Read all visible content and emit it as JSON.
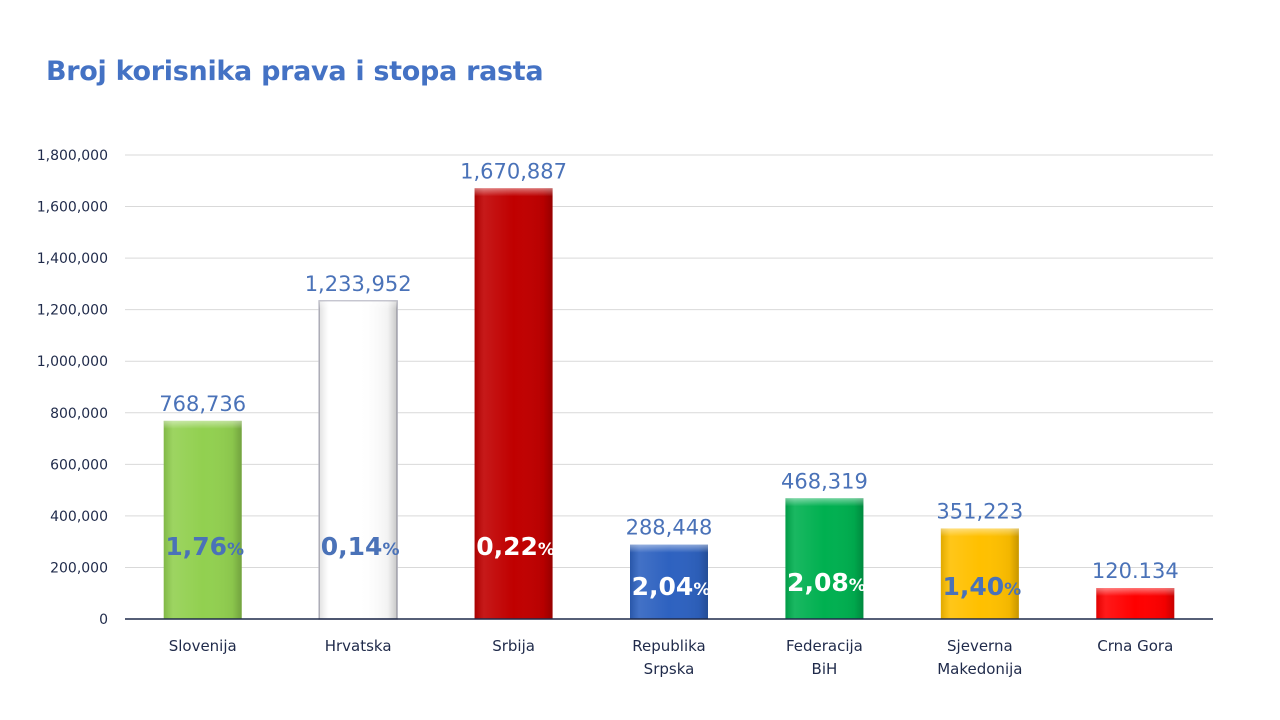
{
  "chart_data": {
    "type": "bar",
    "title": "Broj korisnika prava i stopa rasta",
    "xlabel": "",
    "ylabel": "",
    "ylim": [
      0,
      1800000
    ],
    "yticks": [
      0,
      200000,
      400000,
      600000,
      800000,
      1000000,
      1200000,
      1400000,
      1600000,
      1800000
    ],
    "ytick_labels": [
      "0",
      "200,000",
      "400,000",
      "600,000",
      "800,000",
      "1,000,000",
      "1,200,000",
      "1,400,000",
      "1,600,000",
      "1,800,000"
    ],
    "grid": true,
    "legend": "none",
    "categories": [
      [
        "Slovenija"
      ],
      [
        "Hrvatska"
      ],
      [
        "Srbija"
      ],
      [
        "Republika",
        "Srpska"
      ],
      [
        "Federacija",
        "BiH"
      ],
      [
        "Sjeverna",
        "Makedonija"
      ],
      [
        "Crna Gora"
      ]
    ],
    "values": [
      768736,
      1233952,
      1670887,
      288448,
      468319,
      351223,
      120134
    ],
    "value_labels": [
      "768,736",
      "1,233,952",
      "1,670,887",
      "288,448",
      "468,319",
      "351,223",
      "120.134"
    ],
    "growth_rates": [
      "1,76",
      "0,14",
      "0,22",
      "2,04",
      "2,08",
      "1,40",
      ""
    ],
    "percent_symbol": "%",
    "bar_colors": [
      "#92d050",
      "#ffffff",
      "#c00000",
      "#2e62c0",
      "#00b050",
      "#ffc000",
      "#ff0000"
    ],
    "growth_label_colors": [
      "#4a72b8",
      "#4a72b8",
      "#ffffff",
      "#ffffff",
      "#ffffff",
      "#4a72b8",
      "#ffffff"
    ]
  }
}
